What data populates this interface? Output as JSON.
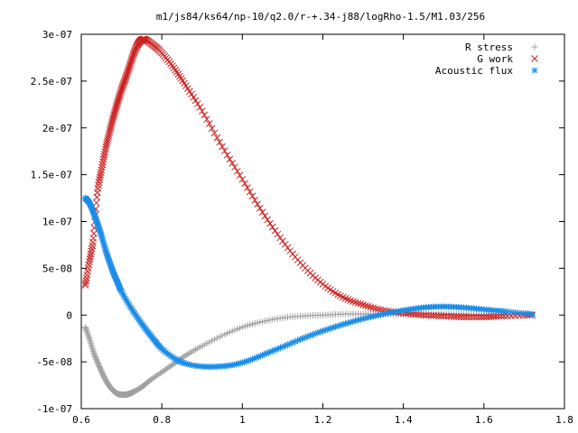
{
  "chart_data": {
    "type": "scatter",
    "title": "m1/js84/ks64/np-10/q2.0/r-+.34-j88/logRho-1.5/M1.03/256",
    "xlabel": "",
    "ylabel": "",
    "xlim": [
      0.6,
      1.8
    ],
    "ylim": [
      -1e-07,
      3e-07
    ],
    "x_ticks": [
      0.6,
      0.8,
      1.0,
      1.2,
      1.4,
      1.6,
      1.8
    ],
    "x_tick_labels": [
      "0.6",
      "0.8",
      "1",
      "1.2",
      "1.4",
      "1.6",
      "1.8"
    ],
    "y_ticks": [
      -1e-07,
      -5e-08,
      0,
      5e-08,
      1e-07,
      1.5e-07,
      2e-07,
      2.5e-07,
      3e-07
    ],
    "y_tick_labels": [
      "-1e-07",
      "-5e-08",
      "0",
      "5e-08",
      "1e-07",
      "1.5e-07",
      "2e-07",
      "2.5e-07",
      "3e-07"
    ],
    "grid": false,
    "legend_position": "top-right",
    "series": [
      {
        "name": "R stress",
        "marker": "plus",
        "color": "#a0a0a0",
        "x": [
          0.61,
          0.62,
          0.63,
          0.64,
          0.65,
          0.66,
          0.67,
          0.68,
          0.69,
          0.7,
          0.71,
          0.72,
          0.73,
          0.75,
          0.77,
          0.8,
          0.83,
          0.86,
          0.9,
          0.95,
          1.0,
          1.05,
          1.1,
          1.15,
          1.2,
          1.25,
          1.3,
          1.35,
          1.4,
          1.45,
          1.5,
          1.55,
          1.6,
          1.65,
          1.72
        ],
        "y": [
          -1.3e-08,
          -2.5e-08,
          -3.9e-08,
          -5e-08,
          -6e-08,
          -6.9e-08,
          -7.6e-08,
          -8.1e-08,
          -8.4e-08,
          -8.5e-08,
          -8.5e-08,
          -8.4e-08,
          -8.2e-08,
          -7.7e-08,
          -7e-08,
          -6.1e-08,
          -5.2e-08,
          -4.3e-08,
          -3.3e-08,
          -2.2e-08,
          -1.3e-08,
          -7e-09,
          -3e-09,
          -1e-09,
          0,
          1e-09,
          1e-09,
          1e-09,
          1e-09,
          1e-09,
          1e-09,
          1e-09,
          0,
          0,
          0
        ]
      },
      {
        "name": "G work",
        "marker": "cross",
        "color": "#cc2222",
        "x": [
          0.61,
          0.62,
          0.63,
          0.64,
          0.65,
          0.66,
          0.67,
          0.68,
          0.69,
          0.7,
          0.71,
          0.72,
          0.73,
          0.74,
          0.75,
          0.76,
          0.78,
          0.8,
          0.83,
          0.86,
          0.9,
          0.95,
          1.0,
          1.05,
          1.1,
          1.15,
          1.2,
          1.25,
          1.3,
          1.35,
          1.4,
          1.45,
          1.5,
          1.55,
          1.6,
          1.65,
          1.72
        ],
        "y": [
          3.2e-08,
          5.7e-08,
          8.2e-08,
          1.31e-07,
          1.55e-07,
          1.77e-07,
          1.95e-07,
          2.12e-07,
          2.27e-07,
          2.41e-07,
          2.53e-07,
          2.66e-07,
          2.79e-07,
          2.89e-07,
          2.94e-07,
          2.94e-07,
          2.88e-07,
          2.8e-07,
          2.64e-07,
          2.45e-07,
          2.18e-07,
          1.8e-07,
          1.45e-07,
          1.1e-07,
          7.9e-08,
          5.3e-08,
          3.3e-08,
          1.9e-08,
          1.1e-08,
          5e-09,
          2e-09,
          0,
          -1e-09,
          -2e-09,
          -2e-09,
          -1e-09,
          0
        ]
      },
      {
        "name": "Acoustic flux",
        "marker": "star",
        "color": "#1a8ce6",
        "x": [
          0.61,
          0.62,
          0.63,
          0.64,
          0.65,
          0.66,
          0.67,
          0.68,
          0.69,
          0.7,
          0.72,
          0.74,
          0.76,
          0.78,
          0.8,
          0.83,
          0.86,
          0.9,
          0.94,
          0.98,
          1.02,
          1.06,
          1.1,
          1.15,
          1.2,
          1.25,
          1.3,
          1.35,
          1.4,
          1.45,
          1.5,
          1.55,
          1.6,
          1.65,
          1.72
        ],
        "y": [
          1.25e-07,
          1.2e-07,
          1.1e-07,
          9.8e-08,
          8.5e-08,
          7e-08,
          5.7e-08,
          4.5e-08,
          3.5e-08,
          2.5e-08,
          1e-08,
          -3e-09,
          -1.5e-08,
          -2.6e-08,
          -3.6e-08,
          -4.6e-08,
          -5.2e-08,
          -5.5e-08,
          -5.5e-08,
          -5.3e-08,
          -4.8e-08,
          -4.1e-08,
          -3.4e-08,
          -2.5e-08,
          -1.7e-08,
          -1e-08,
          -4e-09,
          1e-09,
          5e-09,
          8e-09,
          9e-09,
          8e-09,
          6e-09,
          4e-09,
          1e-09
        ]
      }
    ]
  }
}
